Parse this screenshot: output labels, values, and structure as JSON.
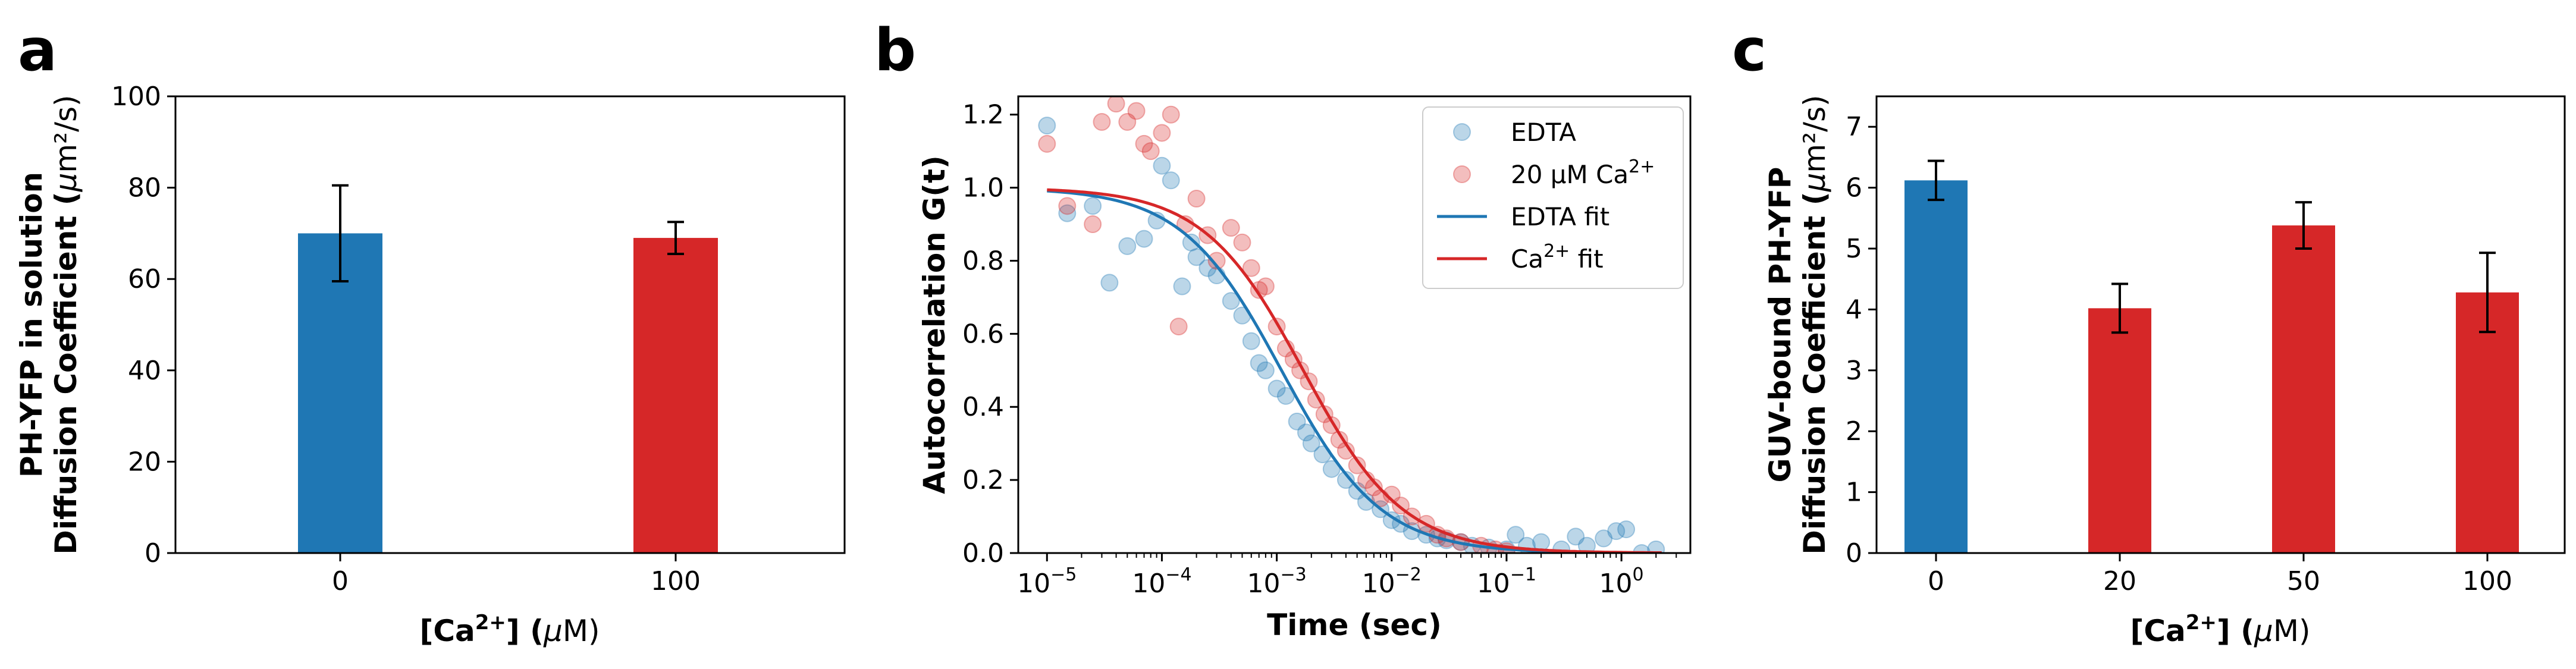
{
  "panel_letters": {
    "a": "a",
    "b": "b",
    "c": "c"
  },
  "colors": {
    "blue": "#1f77b4",
    "red": "#d62728",
    "black": "#000000"
  },
  "chart_data": [
    {
      "panel": "a",
      "type": "bar",
      "categories": [
        "0",
        "100"
      ],
      "values": [
        70,
        69
      ],
      "errors": [
        10.5,
        3.5
      ],
      "colors": [
        "#1f77b4",
        "#d62728"
      ],
      "ylim": [
        0,
        100
      ],
      "yticks": [
        "0",
        "20",
        "40",
        "60",
        "80",
        "100"
      ],
      "xlabel_main": "[Ca",
      "xlabel_sup": "2+",
      "xlabel_end": "] (",
      "xlabel_mu": "μ",
      "xlabel_unit": "M)",
      "ylabel_line1": "PH-YFP in solution",
      "ylabel_line2": "Diffusion Coefficient (",
      "ylabel_mu": "μ",
      "ylabel_unit": "m²/s)"
    },
    {
      "panel": "b",
      "type": "scatter",
      "x_scale": "log",
      "xlim_exp": [
        -5.25,
        0.6
      ],
      "ylim": [
        0,
        1.25
      ],
      "xticks": [
        {
          "base": "10",
          "exp": "−5",
          "e": -5
        },
        {
          "base": "10",
          "exp": "−4",
          "e": -4
        },
        {
          "base": "10",
          "exp": "−3",
          "e": -3
        },
        {
          "base": "10",
          "exp": "−2",
          "e": -2
        },
        {
          "base": "10",
          "exp": "−1",
          "e": -1
        },
        {
          "base": "10",
          "exp": "0",
          "e": 0
        }
      ],
      "yticks": [
        "0.0",
        "0.2",
        "0.4",
        "0.6",
        "0.8",
        "1.0",
        "1.2"
      ],
      "xlabel": "Time (sec)",
      "ylabel": "Autocorrelation G(t)",
      "legend_position": "top-right",
      "legend": [
        {
          "kind": "dot",
          "color": "#1f77b4",
          "text": "EDTA",
          "sup": "",
          "tail": ""
        },
        {
          "kind": "dot",
          "color": "#d62728",
          "text": "20 μM Ca",
          "sup": "2+",
          "tail": ""
        },
        {
          "kind": "line",
          "color": "#1f77b4",
          "text": "EDTA fit",
          "sup": "",
          "tail": ""
        },
        {
          "kind": "line",
          "color": "#d62728",
          "text": "Ca",
          "sup": "2+",
          "tail": " fit"
        }
      ],
      "series": [
        {
          "name": "EDTA",
          "color": "#1f77b4",
          "points": [
            [
              1e-05,
              1.17
            ],
            [
              1.5e-05,
              0.93
            ],
            [
              2.5e-05,
              0.95
            ],
            [
              3.5e-05,
              0.74
            ],
            [
              5e-05,
              0.84
            ],
            [
              7e-05,
              0.86
            ],
            [
              9e-05,
              0.91
            ],
            [
              0.0001,
              1.06
            ],
            [
              0.00012,
              1.02
            ],
            [
              0.00015,
              0.73
            ],
            [
              0.00018,
              0.85
            ],
            [
              0.0002,
              0.81
            ],
            [
              0.00025,
              0.78
            ],
            [
              0.0003,
              0.76
            ],
            [
              0.0004,
              0.69
            ],
            [
              0.0005,
              0.65
            ],
            [
              0.0006,
              0.58
            ],
            [
              0.0007,
              0.52
            ],
            [
              0.0008,
              0.5
            ],
            [
              0.001,
              0.45
            ],
            [
              0.0012,
              0.43
            ],
            [
              0.0015,
              0.36
            ],
            [
              0.0018,
              0.33
            ],
            [
              0.002,
              0.3
            ],
            [
              0.0025,
              0.27
            ],
            [
              0.003,
              0.23
            ],
            [
              0.004,
              0.2
            ],
            [
              0.005,
              0.17
            ],
            [
              0.006,
              0.14
            ],
            [
              0.008,
              0.12
            ],
            [
              0.01,
              0.09
            ],
            [
              0.012,
              0.08
            ],
            [
              0.015,
              0.06
            ],
            [
              0.02,
              0.05
            ],
            [
              0.025,
              0.04
            ],
            [
              0.03,
              0.035
            ],
            [
              0.04,
              0.03
            ],
            [
              0.05,
              0.02
            ],
            [
              0.07,
              0.015
            ],
            [
              0.1,
              0.01
            ],
            [
              0.12,
              0.05
            ],
            [
              0.15,
              0.02
            ],
            [
              0.2,
              0.03
            ],
            [
              0.3,
              0.01
            ],
            [
              0.4,
              0.045
            ],
            [
              0.5,
              0.02
            ],
            [
              0.7,
              0.04
            ],
            [
              0.9,
              0.06
            ],
            [
              1.1,
              0.065
            ],
            [
              1.5,
              0.0
            ],
            [
              2.0,
              0.01
            ]
          ]
        },
        {
          "name": "20 μM Ca2+",
          "color": "#d62728",
          "points": [
            [
              1e-05,
              1.12
            ],
            [
              1.5e-05,
              0.95
            ],
            [
              2.5e-05,
              0.9
            ],
            [
              3e-05,
              1.18
            ],
            [
              4e-05,
              1.23
            ],
            [
              5e-05,
              1.18
            ],
            [
              6e-05,
              1.21
            ],
            [
              7e-05,
              1.12
            ],
            [
              8e-05,
              1.1
            ],
            [
              0.0001,
              1.15
            ],
            [
              0.00012,
              1.2
            ],
            [
              0.00014,
              0.62
            ],
            [
              0.00016,
              0.9
            ],
            [
              0.0002,
              0.97
            ],
            [
              0.00025,
              0.87
            ],
            [
              0.0003,
              0.8
            ],
            [
              0.0004,
              0.89
            ],
            [
              0.0005,
              0.85
            ],
            [
              0.0006,
              0.78
            ],
            [
              0.0007,
              0.72
            ],
            [
              0.0008,
              0.73
            ],
            [
              0.001,
              0.62
            ],
            [
              0.0012,
              0.56
            ],
            [
              0.0014,
              0.53
            ],
            [
              0.0016,
              0.5
            ],
            [
              0.0019,
              0.47
            ],
            [
              0.0022,
              0.42
            ],
            [
              0.0026,
              0.38
            ],
            [
              0.003,
              0.35
            ],
            [
              0.0035,
              0.31
            ],
            [
              0.004,
              0.28
            ],
            [
              0.005,
              0.24
            ],
            [
              0.006,
              0.2
            ],
            [
              0.007,
              0.18
            ],
            [
              0.008,
              0.15
            ],
            [
              0.01,
              0.16
            ],
            [
              0.012,
              0.13
            ],
            [
              0.015,
              0.1
            ],
            [
              0.02,
              0.08
            ],
            [
              0.025,
              0.05
            ],
            [
              0.03,
              0.04
            ],
            [
              0.04,
              0.03
            ],
            [
              0.06,
              0.02
            ],
            [
              0.08,
              0.01
            ],
            [
              0.1,
              0.005
            ]
          ]
        }
      ],
      "fits": [
        {
          "name": "EDTA fit",
          "color": "#1f77b4",
          "amp": 1.0,
          "tau": 0.0011
        },
        {
          "name": "Ca2+ fit",
          "color": "#d62728",
          "amp": 1.0,
          "tau": 0.0017
        }
      ]
    },
    {
      "panel": "c",
      "type": "bar",
      "categories": [
        "0",
        "20",
        "50",
        "100"
      ],
      "values": [
        6.12,
        4.02,
        5.38,
        4.28
      ],
      "errors": [
        0.32,
        0.4,
        0.38,
        0.65
      ],
      "colors": [
        "#1f77b4",
        "#d62728",
        "#d62728",
        "#d62728"
      ],
      "ylim": [
        0,
        7.5
      ],
      "yticks": [
        "0",
        "1",
        "2",
        "3",
        "4",
        "5",
        "6",
        "7"
      ],
      "xlabel_main": "[Ca",
      "xlabel_sup": "2+",
      "xlabel_end": "] (",
      "xlabel_mu": "μ",
      "xlabel_unit": "M)",
      "ylabel_line1": "GUV-bound PH-YFP",
      "ylabel_line2": "Diffusion Coefficient (",
      "ylabel_mu": "μ",
      "ylabel_unit": "m²/s)"
    }
  ]
}
